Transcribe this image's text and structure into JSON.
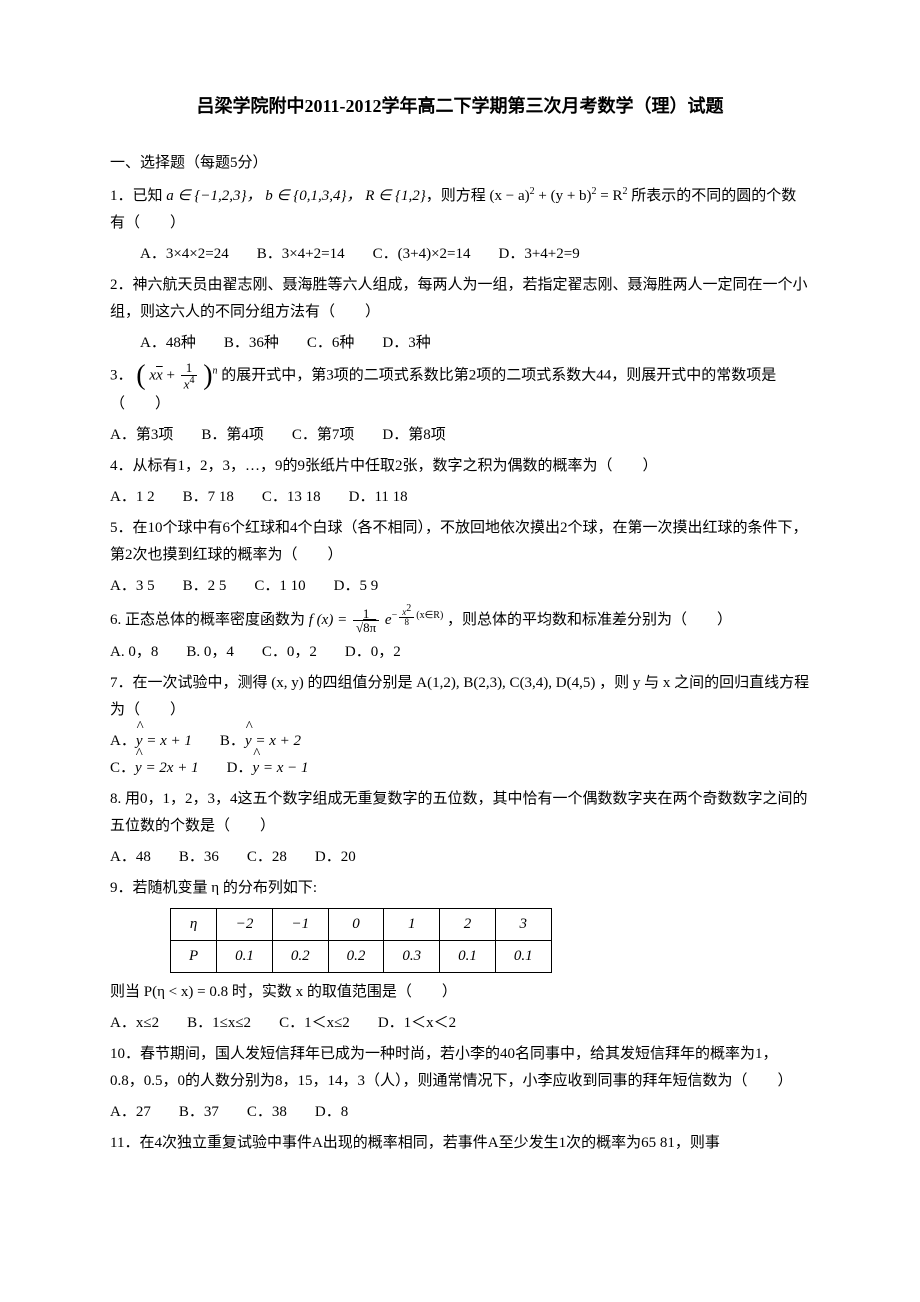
{
  "title": "吕梁学院附中2011-2012学年高二下学期第三次月考数学（理）试题",
  "section1": "一、选择题（每题5分）",
  "q1": {
    "stem_a": "1．已知 ",
    "math": "a ∈ {−1,2,3}， b ∈ {0,1,3,4}， R ∈ {1,2}",
    "stem_b": "，则方程 (x − a)",
    "sup1": "2",
    "stem_c": " + (y + b)",
    "sup2": "2",
    "stem_d": " = R",
    "sup3": "2",
    "stem_e": " 所表示的不同的圆的个数有（　　）",
    "A": "A．3×4×2=24",
    "B": "B．3×4+2=14",
    "C": "C．(3+4)×2=14",
    "D": "D．3+4+2=9"
  },
  "q2": {
    "stem": "2．神六航天员由翟志刚、聂海胜等六人组成，每两人为一组，若指定翟志刚、聂海胜两人一定同在一个小组，则这六人的不同分组方法有（　　）",
    "A": "A．48种",
    "B": "B．36种",
    "C": "C．6种",
    "D": "D．3种"
  },
  "q3": {
    "prefix": "3．",
    "expr_inner1": "x",
    "expr_sqrt": "x",
    "expr_plus": " + ",
    "frac_num": "1",
    "frac_den_base": "x",
    "frac_den_pow": "4",
    "pow_n": "n",
    "stem": " 的展开式中，第3项的二项式系数比第2项的二项式系数大44，则展开式中的常数项是（　　）",
    "A": "A．第3项",
    "B": "B．第4项",
    "C": "C．第7项",
    "D": "D．第8项"
  },
  "q4": {
    "stem": "4．从标有1，2，3，…，9的9张纸片中任取2张，数字之积为偶数的概率为（　　）",
    "A": "A．1 2",
    "B": "B．7 18",
    "C": "C．13 18",
    "D": "D．11 18"
  },
  "q5": {
    "stem": "5．在10个球中有6个红球和4个白球（各不相同），不放回地依次摸出2个球，在第一次摸出红球的条件下，第2次也摸到红球的概率为（　　）",
    "A": "A．3 5",
    "B": "B．2 5",
    "C": "C．1 10",
    "D": "D．5 9"
  },
  "q6": {
    "stem_a": "6. 正态总体的概率密度函数为 ",
    "fx": "f (x) = ",
    "frac_num": "1",
    "frac_den_sqrt": "8π",
    "e": "e",
    "exp_neg": "−",
    "exp_num": "x",
    "exp_num_pow": "2",
    "exp_den": "8",
    "domain": "(x∈R)",
    "stem_b": " ，则总体的平均数和标准差分别为（　　）",
    "A": "A. 0，8",
    "B": "B. 0，4",
    "C": "C．0，2",
    "D": "D．0，2"
  },
  "q7": {
    "stem_a": "7．在一次试验中，测得 (x,  y) 的四组值分别是 A(1,2),  B(2,3),  C(3,4),  D(4,5) ，则 y 与 x 之间的回归直线方程为（　　）",
    "A_pre": "A．",
    "A_eq": " = x + 1",
    "B_pre": "B．",
    "B_eq": " = x + 2",
    "C_pre": "C．",
    "C_eq": " = 2x + 1",
    "D_pre": "D．",
    "D_eq": " = x − 1"
  },
  "q8": {
    "stem": "8. 用0，1，2，3，4这五个数字组成无重复数字的五位数，其中恰有一个偶数数字夹在两个奇数数字之间的五位数的个数是（　　）",
    "A": "A．48",
    "B": "B．36",
    "C": "C．28",
    "D": "D．20"
  },
  "q9": {
    "stem": "9．若随机变量 η 的分布列如下:",
    "row1_lab": "η",
    "row1": [
      "−2",
      "−1",
      "0",
      "1",
      "2",
      "3"
    ],
    "row2_lab": "P",
    "row2": [
      "0.1",
      "0.2",
      "0.2",
      "0.3",
      "0.1",
      "0.1"
    ],
    "stem2_a": "则当 P(η < x) = 0.8 时，实数 x 的取值范围是（　　）",
    "A": "A．x≤2",
    "B": "B．1≤x≤2",
    "C": "C．1＜x≤2",
    "D": "D．1＜x＜2"
  },
  "q10": {
    "stem": "10．春节期间，国人发短信拜年已成为一种时尚，若小李的40名同事中，给其发短信拜年的概率为1，0.8，0.5，0的人数分别为8，15，14，3（人），则通常情况下，小李应收到同事的拜年短信数为（　　）",
    "A": "A．27",
    "B": "B．37",
    "C": "C．38",
    "D": "D．8"
  },
  "q11": {
    "stem": "11．在4次独立重复试验中事件A出现的概率相同，若事件A至少发生1次的概率为65 81，则事"
  }
}
